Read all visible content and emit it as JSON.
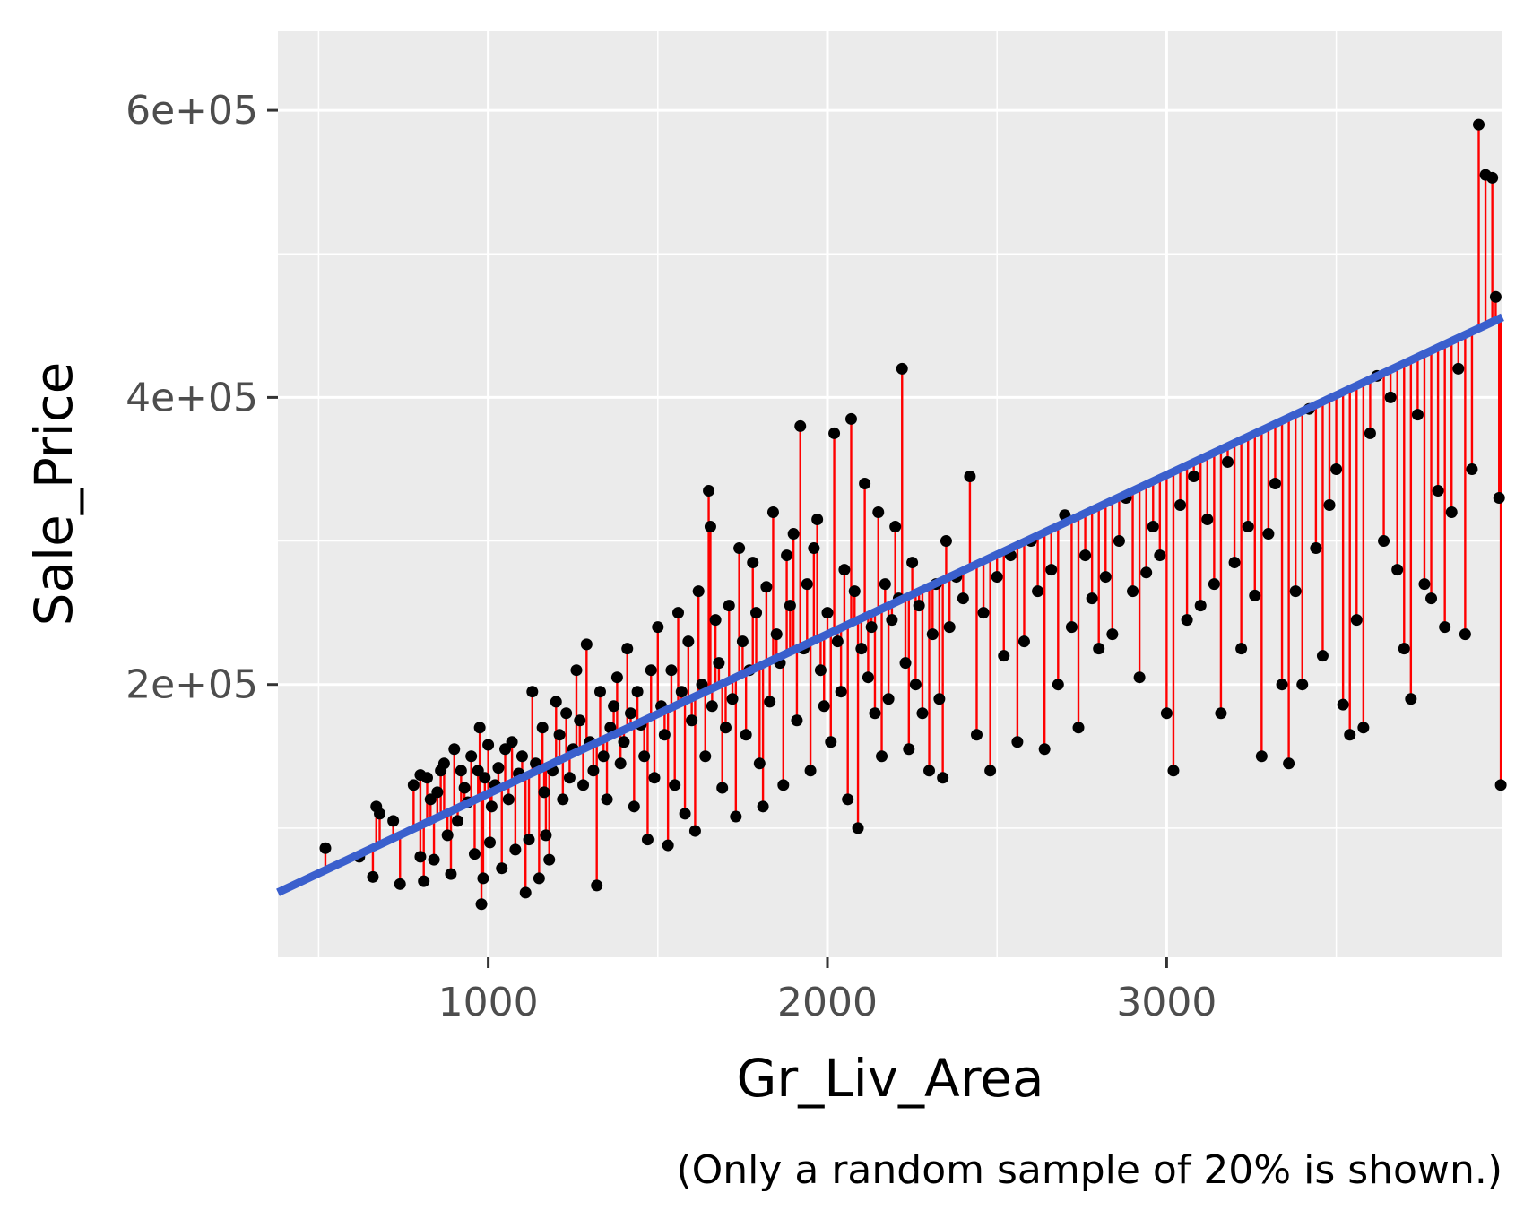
{
  "chart_data": {
    "type": "scatter",
    "xlabel": "Gr_Liv_Area",
    "ylabel": "Sale_Price",
    "caption": "(Only a random sample of 20% is shown.)",
    "xlim": [
      380,
      3990
    ],
    "ylim": [
      10000,
      655000
    ],
    "x_ticks": [
      1000,
      2000,
      3000
    ],
    "x_tick_labels": [
      "1000",
      "2000",
      "3000"
    ],
    "y_ticks": [
      200000,
      400000,
      600000
    ],
    "y_tick_labels": [
      "2e+05",
      "4e+05",
      "6e+05"
    ],
    "grid": true,
    "regression_line": {
      "intercept": 13000,
      "slope": 111,
      "color": "#3a5fcd"
    },
    "colors": {
      "panel": "#ebebeb",
      "grid": "#ffffff",
      "point": "#000000",
      "residual": "#ff0000"
    },
    "points": [
      [
        520,
        86000
      ],
      [
        620,
        80000
      ],
      [
        660,
        66000
      ],
      [
        670,
        115000
      ],
      [
        680,
        110000
      ],
      [
        720,
        105000
      ],
      [
        740,
        61000
      ],
      [
        780,
        130000
      ],
      [
        800,
        137000
      ],
      [
        800,
        80000
      ],
      [
        810,
        63000
      ],
      [
        820,
        135000
      ],
      [
        830,
        120000
      ],
      [
        840,
        78000
      ],
      [
        850,
        125000
      ],
      [
        860,
        140000
      ],
      [
        870,
        145000
      ],
      [
        880,
        95000
      ],
      [
        890,
        68000
      ],
      [
        900,
        155000
      ],
      [
        910,
        105000
      ],
      [
        920,
        140000
      ],
      [
        930,
        128000
      ],
      [
        940,
        118000
      ],
      [
        950,
        150000
      ],
      [
        960,
        82000
      ],
      [
        970,
        140000
      ],
      [
        975,
        170000
      ],
      [
        980,
        47000
      ],
      [
        985,
        65000
      ],
      [
        990,
        135000
      ],
      [
        1000,
        158000
      ],
      [
        1005,
        90000
      ],
      [
        1010,
        115000
      ],
      [
        1020,
        130000
      ],
      [
        1030,
        142000
      ],
      [
        1040,
        72000
      ],
      [
        1050,
        155000
      ],
      [
        1060,
        120000
      ],
      [
        1070,
        160000
      ],
      [
        1080,
        85000
      ],
      [
        1090,
        138000
      ],
      [
        1100,
        150000
      ],
      [
        1110,
        55000
      ],
      [
        1120,
        92000
      ],
      [
        1130,
        195000
      ],
      [
        1140,
        145000
      ],
      [
        1150,
        65000
      ],
      [
        1160,
        170000
      ],
      [
        1165,
        125000
      ],
      [
        1170,
        95000
      ],
      [
        1180,
        78000
      ],
      [
        1190,
        140000
      ],
      [
        1200,
        188000
      ],
      [
        1210,
        165000
      ],
      [
        1220,
        120000
      ],
      [
        1230,
        180000
      ],
      [
        1240,
        135000
      ],
      [
        1250,
        155000
      ],
      [
        1260,
        210000
      ],
      [
        1270,
        175000
      ],
      [
        1280,
        130000
      ],
      [
        1290,
        228000
      ],
      [
        1300,
        160000
      ],
      [
        1310,
        140000
      ],
      [
        1320,
        60000
      ],
      [
        1330,
        195000
      ],
      [
        1340,
        150000
      ],
      [
        1350,
        120000
      ],
      [
        1360,
        170000
      ],
      [
        1370,
        185000
      ],
      [
        1380,
        205000
      ],
      [
        1390,
        145000
      ],
      [
        1400,
        160000
      ],
      [
        1410,
        225000
      ],
      [
        1420,
        180000
      ],
      [
        1430,
        115000
      ],
      [
        1440,
        195000
      ],
      [
        1450,
        172000
      ],
      [
        1460,
        150000
      ],
      [
        1470,
        92000
      ],
      [
        1480,
        210000
      ],
      [
        1490,
        135000
      ],
      [
        1500,
        240000
      ],
      [
        1510,
        185000
      ],
      [
        1520,
        165000
      ],
      [
        1530,
        88000
      ],
      [
        1540,
        210000
      ],
      [
        1550,
        130000
      ],
      [
        1560,
        250000
      ],
      [
        1570,
        195000
      ],
      [
        1580,
        110000
      ],
      [
        1590,
        230000
      ],
      [
        1600,
        175000
      ],
      [
        1610,
        98000
      ],
      [
        1620,
        265000
      ],
      [
        1630,
        200000
      ],
      [
        1640,
        150000
      ],
      [
        1650,
        335000
      ],
      [
        1655,
        310000
      ],
      [
        1660,
        185000
      ],
      [
        1670,
        245000
      ],
      [
        1680,
        215000
      ],
      [
        1690,
        128000
      ],
      [
        1700,
        170000
      ],
      [
        1710,
        255000
      ],
      [
        1720,
        190000
      ],
      [
        1730,
        108000
      ],
      [
        1740,
        295000
      ],
      [
        1750,
        230000
      ],
      [
        1760,
        165000
      ],
      [
        1770,
        210000
      ],
      [
        1780,
        285000
      ],
      [
        1790,
        250000
      ],
      [
        1800,
        145000
      ],
      [
        1810,
        115000
      ],
      [
        1820,
        268000
      ],
      [
        1830,
        188000
      ],
      [
        1840,
        320000
      ],
      [
        1850,
        235000
      ],
      [
        1860,
        215000
      ],
      [
        1870,
        130000
      ],
      [
        1880,
        290000
      ],
      [
        1890,
        255000
      ],
      [
        1900,
        305000
      ],
      [
        1910,
        175000
      ],
      [
        1920,
        380000
      ],
      [
        1930,
        225000
      ],
      [
        1940,
        270000
      ],
      [
        1950,
        140000
      ],
      [
        1960,
        295000
      ],
      [
        1970,
        315000
      ],
      [
        1980,
        210000
      ],
      [
        1990,
        185000
      ],
      [
        2000,
        250000
      ],
      [
        2010,
        160000
      ],
      [
        2020,
        375000
      ],
      [
        2030,
        230000
      ],
      [
        2040,
        195000
      ],
      [
        2050,
        280000
      ],
      [
        2060,
        120000
      ],
      [
        2070,
        385000
      ],
      [
        2080,
        265000
      ],
      [
        2090,
        100000
      ],
      [
        2100,
        225000
      ],
      [
        2110,
        340000
      ],
      [
        2120,
        205000
      ],
      [
        2130,
        240000
      ],
      [
        2140,
        180000
      ],
      [
        2150,
        320000
      ],
      [
        2160,
        150000
      ],
      [
        2170,
        270000
      ],
      [
        2180,
        190000
      ],
      [
        2190,
        245000
      ],
      [
        2200,
        310000
      ],
      [
        2210,
        260000
      ],
      [
        2220,
        420000
      ],
      [
        2230,
        215000
      ],
      [
        2240,
        155000
      ],
      [
        2250,
        285000
      ],
      [
        2260,
        200000
      ],
      [
        2270,
        255000
      ],
      [
        2280,
        180000
      ],
      [
        2300,
        140000
      ],
      [
        2310,
        235000
      ],
      [
        2320,
        270000
      ],
      [
        2330,
        190000
      ],
      [
        2340,
        135000
      ],
      [
        2350,
        300000
      ],
      [
        2360,
        240000
      ],
      [
        2380,
        275000
      ],
      [
        2400,
        260000
      ],
      [
        2420,
        345000
      ],
      [
        2440,
        165000
      ],
      [
        2460,
        250000
      ],
      [
        2480,
        140000
      ],
      [
        2500,
        275000
      ],
      [
        2520,
        220000
      ],
      [
        2540,
        290000
      ],
      [
        2560,
        160000
      ],
      [
        2580,
        230000
      ],
      [
        2600,
        300000
      ],
      [
        2620,
        265000
      ],
      [
        2640,
        155000
      ],
      [
        2660,
        280000
      ],
      [
        2680,
        200000
      ],
      [
        2700,
        318000
      ],
      [
        2720,
        240000
      ],
      [
        2740,
        170000
      ],
      [
        2760,
        290000
      ],
      [
        2780,
        260000
      ],
      [
        2800,
        225000
      ],
      [
        2820,
        275000
      ],
      [
        2840,
        235000
      ],
      [
        2860,
        300000
      ],
      [
        2880,
        330000
      ],
      [
        2900,
        265000
      ],
      [
        2920,
        205000
      ],
      [
        2940,
        278000
      ],
      [
        2960,
        310000
      ],
      [
        2980,
        290000
      ],
      [
        3000,
        180000
      ],
      [
        3020,
        140000
      ],
      [
        3040,
        325000
      ],
      [
        3060,
        245000
      ],
      [
        3080,
        345000
      ],
      [
        3100,
        255000
      ],
      [
        3120,
        315000
      ],
      [
        3140,
        270000
      ],
      [
        3160,
        180000
      ],
      [
        3180,
        355000
      ],
      [
        3200,
        285000
      ],
      [
        3220,
        225000
      ],
      [
        3240,
        310000
      ],
      [
        3260,
        262000
      ],
      [
        3280,
        150000
      ],
      [
        3300,
        305000
      ],
      [
        3320,
        340000
      ],
      [
        3340,
        200000
      ],
      [
        3360,
        145000
      ],
      [
        3380,
        265000
      ],
      [
        3400,
        200000
      ],
      [
        3420,
        392000
      ],
      [
        3440,
        295000
      ],
      [
        3460,
        220000
      ],
      [
        3480,
        325000
      ],
      [
        3500,
        350000
      ],
      [
        3520,
        186000
      ],
      [
        3540,
        165000
      ],
      [
        3560,
        245000
      ],
      [
        3580,
        170000
      ],
      [
        3600,
        375000
      ],
      [
        3620,
        415000
      ],
      [
        3640,
        300000
      ],
      [
        3660,
        400000
      ],
      [
        3680,
        280000
      ],
      [
        3700,
        225000
      ],
      [
        3720,
        190000
      ],
      [
        3740,
        388000
      ],
      [
        3760,
        270000
      ],
      [
        3780,
        260000
      ],
      [
        3800,
        335000
      ],
      [
        3820,
        240000
      ],
      [
        3840,
        320000
      ],
      [
        3860,
        420000
      ],
      [
        3880,
        235000
      ],
      [
        3900,
        350000
      ],
      [
        3920,
        590000
      ],
      [
        3940,
        555000
      ],
      [
        3960,
        553000
      ],
      [
        3970,
        470000
      ],
      [
        3980,
        330000
      ],
      [
        3985,
        130000
      ]
    ]
  }
}
